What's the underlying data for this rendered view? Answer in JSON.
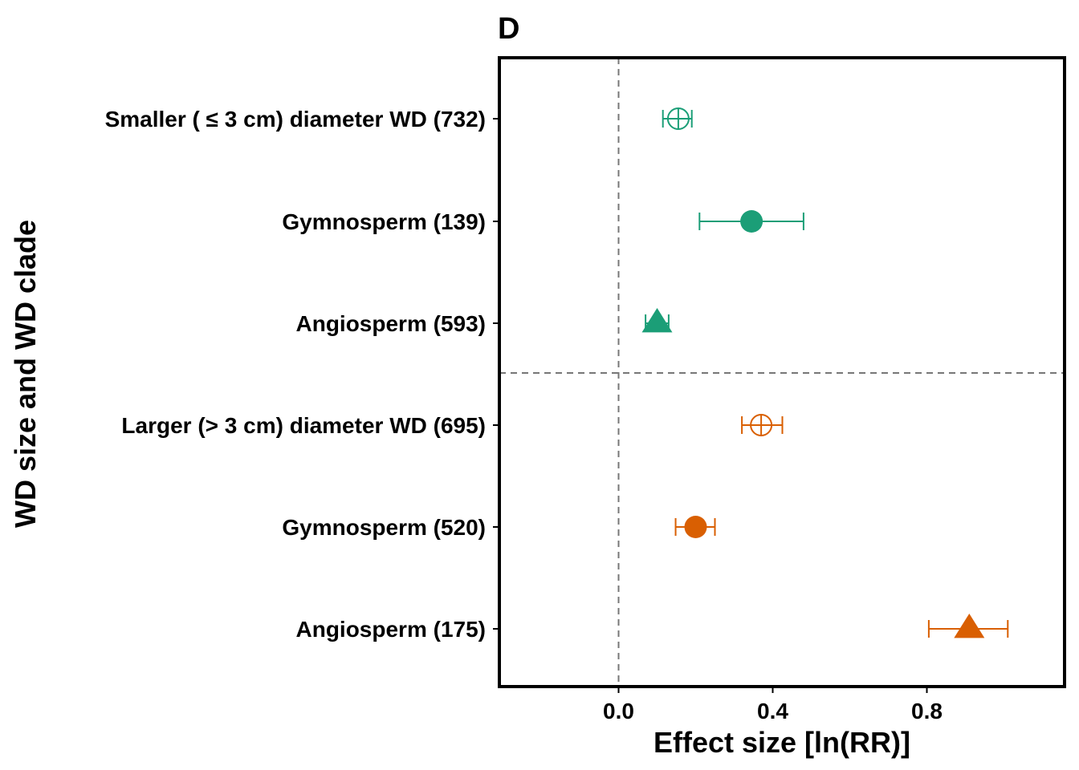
{
  "panel_label": "D",
  "chart_data": {
    "type": "forest",
    "title": "",
    "xlabel": "Effect size [ln(RR)]",
    "ylabel": "WD size and WD clade",
    "xlim": [
      -0.31,
      1.17
    ],
    "xticks": [
      0.0,
      0.4,
      0.8
    ],
    "xtick_labels": [
      "0.0",
      "0.4",
      "0.8"
    ],
    "reference_line_x": 0,
    "group_separator": "between row 3 and row 4",
    "grid": false,
    "legend": "none",
    "colors": {
      "smaller": "#1b9e77",
      "larger": "#d95f02"
    },
    "rows": [
      {
        "label": "Smaller ( ≤ 3 cm) diameter WD (732)",
        "estimate": 0.155,
        "lower": 0.115,
        "upper": 0.19,
        "marker": "circle-open-cross",
        "color": "#1b9e77"
      },
      {
        "label": "Gymnosperm (139)",
        "estimate": 0.345,
        "lower": 0.21,
        "upper": 0.48,
        "marker": "circle-filled",
        "color": "#1b9e77"
      },
      {
        "label": "Angiosperm (593)",
        "estimate": 0.1,
        "lower": 0.07,
        "upper": 0.13,
        "marker": "triangle-filled",
        "color": "#1b9e77"
      },
      {
        "label": "Larger (> 3 cm) diameter WD  (695)",
        "estimate": 0.37,
        "lower": 0.32,
        "upper": 0.425,
        "marker": "circle-open-cross",
        "color": "#d95f02"
      },
      {
        "label": "Gymnosperm (520)",
        "estimate": 0.2,
        "lower": 0.148,
        "upper": 0.25,
        "marker": "circle-filled",
        "color": "#d95f02"
      },
      {
        "label": "Angiosperm (175)",
        "estimate": 0.91,
        "lower": 0.805,
        "upper": 1.01,
        "marker": "triangle-filled",
        "color": "#d95f02"
      }
    ]
  }
}
